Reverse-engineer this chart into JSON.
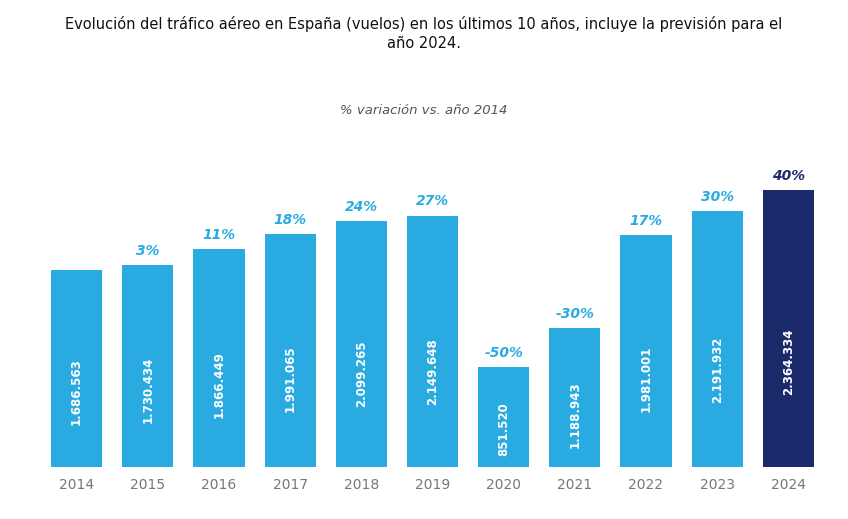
{
  "title": "Evolución del tráfico aéreo en España (vuelos) en los últimos 10 años, incluye la previsión para el\naño 2024.",
  "subtitle": "% variación vs. año 2014",
  "years": [
    "2014",
    "2015",
    "2016",
    "2017",
    "2018",
    "2019",
    "2020",
    "2021",
    "2022",
    "2023",
    "2024"
  ],
  "values": [
    1686563,
    1730434,
    1866449,
    1991065,
    2099265,
    2149648,
    851520,
    1188943,
    1981001,
    2191932,
    2364334
  ],
  "pct_labels": [
    "",
    "3%",
    "11%",
    "18%",
    "24%",
    "27%",
    "-50%",
    "-30%",
    "17%",
    "30%",
    "40%"
  ],
  "bar_labels": [
    "1.686.563",
    "1.730.434",
    "1.866.449",
    "1.991.065",
    "2.099.265",
    "2.149.648",
    "851.520",
    "1.188.943",
    "1.981.001",
    "2.191.932",
    "2.364.334"
  ],
  "bar_colors": [
    "#29ABE2",
    "#29ABE2",
    "#29ABE2",
    "#29ABE2",
    "#29ABE2",
    "#29ABE2",
    "#29ABE2",
    "#29ABE2",
    "#29ABE2",
    "#29ABE2",
    "#1B2A6B"
  ],
  "pct_color_normal": "#29ABE2",
  "pct_color_dark": "#1B2A6B",
  "bar_label_color": "#FFFFFF",
  "bg_color": "#FFFFFF",
  "title_color": "#111111",
  "subtitle_color": "#555555",
  "tick_color": "#777777",
  "ylim": [
    0,
    2750000
  ],
  "title_fontsize": 10.5,
  "subtitle_fontsize": 9.5,
  "pct_fontsize": 10,
  "bar_label_fontsize": 8.5,
  "tick_fontsize": 10,
  "bar_width": 0.72
}
